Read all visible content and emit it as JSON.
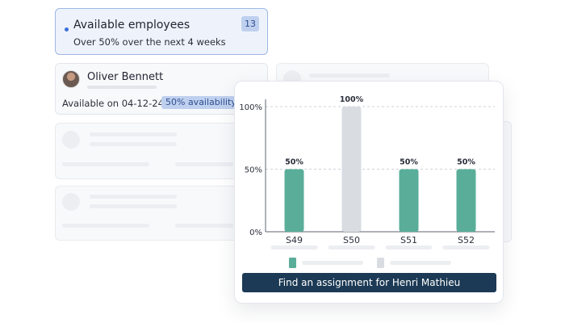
{
  "available": {
    "title": "Available employees",
    "subtitle": "Over 50% over the next 4 weeks",
    "count": "13"
  },
  "person": {
    "name": "Oliver Bennett",
    "available_on": "Available on 04-12-24",
    "availability_badge": "50% availability"
  },
  "chart_data": {
    "type": "bar",
    "categories": [
      "S49",
      "S50",
      "S51",
      "S52"
    ],
    "values": [
      50,
      100,
      50,
      50
    ],
    "value_labels": [
      "50%",
      "100%",
      "50%",
      "50%"
    ],
    "bar_colors": [
      "#5aae99",
      "#d9dce1",
      "#5aae99",
      "#5aae99"
    ],
    "yticks": [
      "0%",
      "50%",
      "100%"
    ],
    "ytick_values": [
      0,
      50,
      100
    ],
    "ylim": [
      0,
      100
    ],
    "grid": "dashed-horizontal",
    "legend_colors": [
      "#5aae99",
      "#d9dce1"
    ]
  },
  "cta": {
    "label": "Find an assignment for Henri Mathieu"
  }
}
